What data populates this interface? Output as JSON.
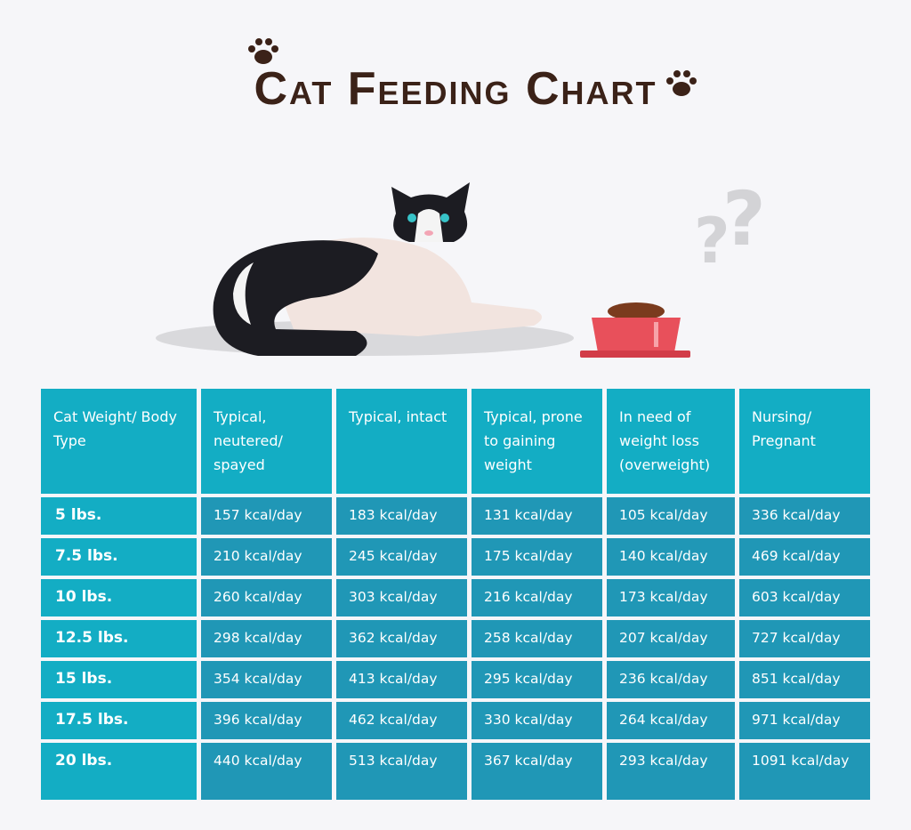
{
  "header": {
    "title": "Cat Feeding Chart"
  },
  "table": {
    "columns": [
      "Cat Weight/ Body Type",
      "Typical, neutered/ spayed",
      "Typical, intact",
      "Typical, prone to gaining weight",
      "In need of weight loss (overweight)",
      "Nursing/ Pregnant"
    ],
    "rows": [
      [
        "5 lbs.",
        "157 kcal/day",
        "183 kcal/day",
        "131 kcal/day",
        "105 kcal/day",
        "336 kcal/day"
      ],
      [
        "7.5 lbs.",
        "210 kcal/day",
        "245 kcal/day",
        "175 kcal/day",
        "140 kcal/day",
        "469 kcal/day"
      ],
      [
        "10 lbs.",
        "260 kcal/day",
        "303 kcal/day",
        "216 kcal/day",
        "173 kcal/day",
        "603 kcal/day"
      ],
      [
        "12.5 lbs.",
        "298 kcal/day",
        "362 kcal/day",
        "258 kcal/day",
        "207 kcal/day",
        "727 kcal/day"
      ],
      [
        "15 lbs.",
        "354 kcal/day",
        "413 kcal/day",
        "295 kcal/day",
        "236 kcal/day",
        "851 kcal/day"
      ],
      [
        "17.5 lbs.",
        "396 kcal/day",
        "462 kcal/day",
        "330 kcal/day",
        "264 kcal/day",
        "971 kcal/day"
      ],
      [
        "20 lbs.",
        "440 kcal/day",
        "513 kcal/day",
        "367 kcal/day",
        "293 kcal/day",
        "1091 kcal/day"
      ]
    ]
  }
}
